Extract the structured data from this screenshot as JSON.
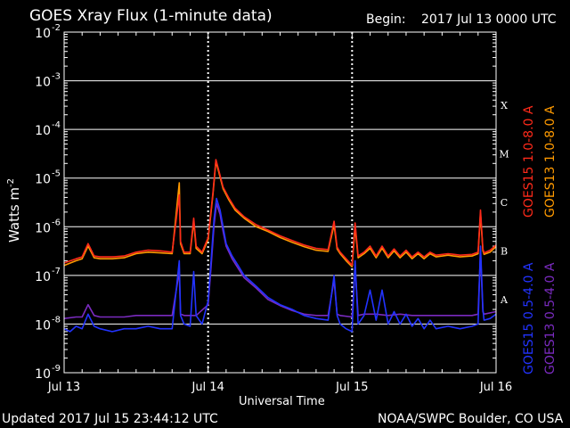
{
  "header": {
    "title": "GOES Xray Flux (1-minute data)",
    "begin_label": "Begin:",
    "begin_value": "2017 Jul 13 0000 UTC"
  },
  "footer": {
    "updated": "Updated 2017 Jul 15 23:44:12 UTC",
    "credit": "NOAA/SWPC Boulder, CO USA"
  },
  "colors": {
    "goes15_long": "#ff2a1a",
    "goes13_long": "#ff9a00",
    "goes15_short": "#2233ff",
    "goes13_short": "#7a2bbf",
    "grid": "#ffffff"
  },
  "chart_data": {
    "type": "line",
    "xlabel": "Universal Time",
    "ylabel": "Watts m",
    "ylabel_exponent": "-2",
    "yscale": "log",
    "ylim": [
      1e-09,
      0.01
    ],
    "xlim": [
      0,
      72
    ],
    "x_unit": "hours since 2017 Jul 13 00:00 UTC",
    "x_ticks": [
      {
        "value": 0,
        "label": "Jul 13"
      },
      {
        "value": 24,
        "label": "Jul 14"
      },
      {
        "value": 48,
        "label": "Jul 15"
      },
      {
        "value": 72,
        "label": "Jul 16"
      }
    ],
    "y_ticks": [
      {
        "base": "10",
        "exp": "-9",
        "value": 1e-09
      },
      {
        "base": "10",
        "exp": "-8",
        "value": 1e-08
      },
      {
        "base": "10",
        "exp": "-7",
        "value": 1e-07
      },
      {
        "base": "10",
        "exp": "-6",
        "value": 1e-06
      },
      {
        "base": "10",
        "exp": "-5",
        "value": 1e-05
      },
      {
        "base": "10",
        "exp": "-4",
        "value": 0.0001
      },
      {
        "base": "10",
        "exp": "-3",
        "value": 0.001
      },
      {
        "base": "10",
        "exp": "-2",
        "value": 0.01
      }
    ],
    "flare_classes": [
      {
        "label": "A",
        "value": 1e-08
      },
      {
        "label": "B",
        "value": 1e-07
      },
      {
        "label": "C",
        "value": 1e-06
      },
      {
        "label": "M",
        "value": 1e-05
      },
      {
        "label": "X",
        "value": 0.0001
      }
    ],
    "day_boundaries": [
      24,
      48
    ],
    "grid": true,
    "legend": [
      {
        "label": "GOES15 1.0-8.0 A",
        "color": "#ff2a1a"
      },
      {
        "label": "GOES13 1.0-8.0 A",
        "color": "#ff9a00"
      },
      {
        "label": "GOES15 0.5-4.0 A",
        "color": "#2233ff"
      },
      {
        "label": "GOES13 0.5-4.0 A",
        "color": "#7a2bbf"
      }
    ],
    "series": [
      {
        "name": "GOES15 1.0-8.0 A",
        "color": "#ff2a1a",
        "x": [
          0,
          2,
          3,
          4,
          5,
          6,
          8,
          10,
          12,
          14,
          16,
          18,
          19.2,
          19.4,
          20,
          21,
          21.6,
          22,
          23,
          24,
          24.8,
          25.3,
          25.8,
          26.5,
          27.5,
          28.5,
          30,
          32,
          34,
          36,
          38,
          40,
          42,
          44,
          45,
          45.5,
          46,
          47,
          48,
          48.5,
          49,
          50,
          51,
          52,
          53,
          54,
          55,
          56,
          57,
          58,
          59,
          60,
          61,
          62,
          64,
          66,
          68,
          69,
          69.4,
          69.8,
          70,
          71,
          72
        ],
        "y": [
          1.8e-07,
          2.2e-07,
          2.4e-07,
          4.5e-07,
          2.5e-07,
          2.4e-07,
          2.4e-07,
          2.5e-07,
          3e-07,
          3.3e-07,
          3.2e-07,
          3e-07,
          4.5e-06,
          5e-07,
          3e-07,
          3e-07,
          1.5e-06,
          4e-07,
          3e-07,
          6e-07,
          5e-06,
          2.4e-05,
          1.4e-05,
          6.5e-06,
          3.8e-06,
          2.4e-06,
          1.6e-06,
          1.1e-06,
          8.5e-07,
          6.5e-07,
          5.2e-07,
          4.2e-07,
          3.6e-07,
          3.4e-07,
          1.3e-06,
          3.8e-07,
          3e-07,
          2.2e-07,
          1.6e-07,
          1.2e-06,
          2.5e-07,
          3e-07,
          4e-07,
          2.5e-07,
          4e-07,
          2.5e-07,
          3.5e-07,
          2.5e-07,
          3.3e-07,
          2.4e-07,
          3e-07,
          2.4e-07,
          3e-07,
          2.6e-07,
          2.8e-07,
          2.6e-07,
          2.7e-07,
          3e-07,
          2.2e-06,
          3.5e-07,
          2.9e-07,
          3.3e-07,
          4.2e-07
        ]
      },
      {
        "name": "GOES13 1.0-8.0 A",
        "color": "#ff9a00",
        "x": [
          0,
          2,
          3,
          4,
          5,
          6,
          8,
          10,
          12,
          14,
          16,
          18,
          19.2,
          19.4,
          20,
          21,
          21.6,
          22,
          23,
          24,
          24.8,
          25.3,
          25.8,
          26.5,
          27.5,
          28.5,
          30,
          32,
          34,
          36,
          38,
          40,
          42,
          44,
          45,
          45.5,
          46,
          47,
          48,
          48.5,
          49,
          50,
          51,
          52,
          53,
          54,
          55,
          56,
          57,
          58,
          59,
          60,
          61,
          62,
          64,
          66,
          68,
          69,
          69.4,
          69.8,
          70,
          71,
          72
        ],
        "y": [
          1.6e-07,
          2e-07,
          2.2e-07,
          4e-07,
          2.3e-07,
          2.2e-07,
          2.2e-07,
          2.3e-07,
          2.8e-07,
          3e-07,
          2.9e-07,
          2.8e-07,
          8e-06,
          4.5e-07,
          2.8e-07,
          2.8e-07,
          1.3e-06,
          3.6e-07,
          2.8e-07,
          5.5e-07,
          4.6e-06,
          2.2e-05,
          1.3e-05,
          6e-06,
          3.5e-06,
          2.2e-06,
          1.5e-06,
          1e-06,
          8e-07,
          6e-07,
          4.8e-07,
          3.9e-07,
          3.3e-07,
          3.1e-07,
          1.1e-06,
          3.5e-07,
          2.8e-07,
          2e-07,
          1.5e-07,
          1e-06,
          2.3e-07,
          2.8e-07,
          3.6e-07,
          2.3e-07,
          3.6e-07,
          2.3e-07,
          3.2e-07,
          2.3e-07,
          3e-07,
          2.2e-07,
          2.8e-07,
          2.2e-07,
          2.8e-07,
          2.4e-07,
          2.6e-07,
          2.4e-07,
          2.5e-07,
          2.8e-07,
          1.9e-06,
          3.2e-07,
          2.7e-07,
          3e-07,
          3.9e-07
        ]
      },
      {
        "name": "GOES15 0.5-4.0 A",
        "color": "#2233ff",
        "x": [
          0,
          1,
          2,
          3,
          4,
          5,
          6,
          8,
          10,
          12,
          14,
          16,
          18,
          19.2,
          19.4,
          20,
          21,
          21.6,
          22,
          23,
          24,
          24.5,
          25,
          25.4,
          26,
          26.5,
          27,
          28,
          29,
          30,
          32,
          34,
          36,
          38,
          40,
          42,
          44,
          45,
          45.5,
          46,
          47,
          48,
          48.5,
          49,
          50,
          51,
          52,
          53,
          54,
          55,
          56,
          57,
          58,
          59,
          60,
          61,
          62,
          64,
          66,
          68,
          69,
          69.4,
          69.8,
          70,
          71,
          72
        ],
        "y": [
          8e-09,
          7e-09,
          9e-09,
          8e-09,
          1.6e-08,
          9e-09,
          8e-09,
          7e-09,
          8e-09,
          8e-09,
          9e-09,
          8e-09,
          8e-09,
          2e-07,
          1.5e-08,
          1e-08,
          9e-09,
          1.2e-07,
          1.5e-08,
          1e-08,
          3e-08,
          2e-07,
          1.5e-06,
          3.8e-06,
          2.2e-06,
          1e-06,
          4.5e-07,
          2.5e-07,
          1.6e-07,
          1e-07,
          6e-08,
          3.5e-08,
          2.5e-08,
          2e-08,
          1.5e-08,
          1.3e-08,
          1.2e-08,
          1e-07,
          1.5e-08,
          1e-08,
          8e-09,
          7e-09,
          2e-07,
          1e-08,
          1.5e-08,
          5e-08,
          1.2e-08,
          5e-08,
          1e-08,
          1.8e-08,
          1e-08,
          1.6e-08,
          9e-09,
          1.3e-08,
          8e-09,
          1.2e-08,
          8e-09,
          9e-09,
          8e-09,
          9e-09,
          1e-08,
          4e-07,
          2e-08,
          1.2e-08,
          1.3e-08,
          1.6e-08
        ]
      },
      {
        "name": "GOES13 0.5-4.0 A",
        "color": "#7a2bbf",
        "x": [
          0,
          2,
          3,
          4,
          5,
          6,
          8,
          10,
          12,
          14,
          16,
          18,
          19.2,
          19.4,
          20,
          22,
          24,
          24.5,
          25,
          25.4,
          26,
          26.5,
          27,
          28,
          30,
          32,
          34,
          36,
          38,
          40,
          42,
          44,
          45,
          45.5,
          46,
          48,
          48.5,
          49,
          50,
          52,
          54,
          56,
          58,
          60,
          62,
          64,
          66,
          68,
          69,
          69.4,
          69.8,
          70,
          72
        ],
        "y": [
          1.3e-08,
          1.4e-08,
          1.4e-08,
          2.5e-08,
          1.5e-08,
          1.4e-08,
          1.4e-08,
          1.4e-08,
          1.5e-08,
          1.5e-08,
          1.5e-08,
          1.5e-08,
          1.2e-07,
          1.6e-08,
          1.5e-08,
          1.5e-08,
          2.5e-08,
          1.5e-07,
          1.1e-06,
          3e-06,
          1.8e-06,
          8e-07,
          4e-07,
          2.2e-07,
          9e-08,
          5.5e-08,
          3.2e-08,
          2.4e-08,
          1.9e-08,
          1.6e-08,
          1.5e-08,
          1.5e-08,
          8e-08,
          1.6e-08,
          1.5e-08,
          1.4e-08,
          1.5e-07,
          1.5e-08,
          1.6e-08,
          1.6e-08,
          1.5e-08,
          1.6e-08,
          1.5e-08,
          1.5e-08,
          1.5e-08,
          1.5e-08,
          1.5e-08,
          1.5e-08,
          1.6e-08,
          3e-07,
          1.8e-08,
          1.6e-08,
          1.8e-08
        ]
      }
    ]
  }
}
